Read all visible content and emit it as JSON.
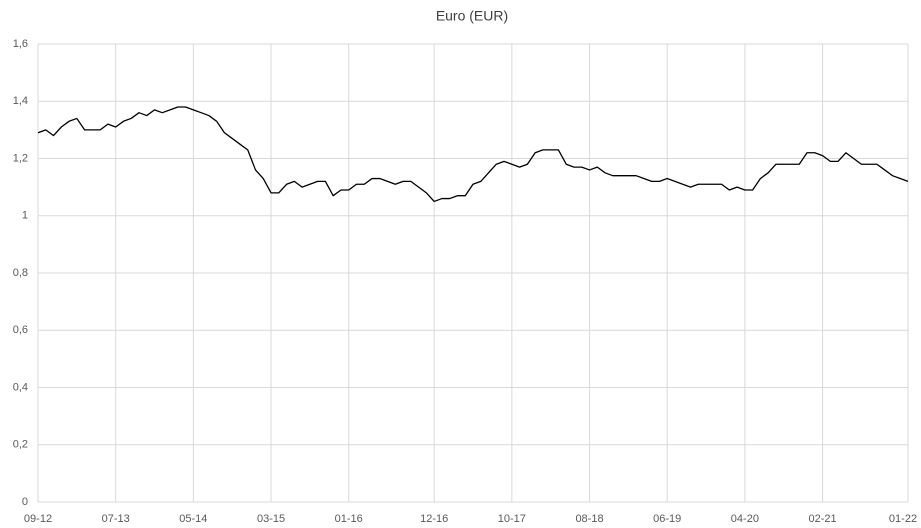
{
  "chart_data": {
    "type": "line",
    "title": "Euro (EUR)",
    "categories": [
      "09-12",
      null,
      null,
      null,
      null,
      null,
      null,
      null,
      null,
      null,
      "07-13",
      null,
      null,
      null,
      null,
      null,
      null,
      null,
      null,
      null,
      "05-14",
      null,
      null,
      null,
      null,
      null,
      null,
      null,
      null,
      null,
      "03-15",
      null,
      null,
      null,
      null,
      null,
      null,
      null,
      null,
      null,
      "01-16",
      null,
      null,
      null,
      null,
      null,
      null,
      null,
      null,
      null,
      null,
      "12-16",
      null,
      null,
      null,
      null,
      null,
      null,
      null,
      null,
      null,
      "10-17",
      null,
      null,
      null,
      null,
      null,
      null,
      null,
      null,
      null,
      "08-18",
      null,
      null,
      null,
      null,
      null,
      null,
      null,
      null,
      null,
      "06-19",
      null,
      null,
      null,
      null,
      null,
      null,
      null,
      null,
      null,
      "04-20",
      null,
      null,
      null,
      null,
      null,
      null,
      null,
      null,
      null,
      "02-21",
      null,
      null,
      null,
      null,
      null,
      null,
      null,
      null,
      null,
      null,
      "01-22"
    ],
    "values": [
      1.29,
      1.3,
      1.28,
      1.31,
      1.33,
      1.34,
      1.3,
      1.3,
      1.3,
      1.32,
      1.31,
      1.33,
      1.34,
      1.36,
      1.35,
      1.37,
      1.36,
      1.37,
      1.38,
      1.38,
      1.37,
      1.36,
      1.35,
      1.33,
      1.29,
      1.27,
      1.25,
      1.23,
      1.16,
      1.13,
      1.08,
      1.08,
      1.11,
      1.12,
      1.1,
      1.11,
      1.12,
      1.12,
      1.07,
      1.09,
      1.09,
      1.11,
      1.11,
      1.13,
      1.13,
      1.12,
      1.11,
      1.12,
      1.12,
      1.1,
      1.08,
      1.05,
      1.06,
      1.06,
      1.07,
      1.07,
      1.11,
      1.12,
      1.15,
      1.18,
      1.19,
      1.18,
      1.17,
      1.18,
      1.22,
      1.23,
      1.23,
      1.23,
      1.18,
      1.17,
      1.17,
      1.16,
      1.17,
      1.15,
      1.14,
      1.14,
      1.14,
      1.14,
      1.13,
      1.12,
      1.12,
      1.13,
      1.12,
      1.11,
      1.1,
      1.11,
      1.11,
      1.11,
      1.11,
      1.09,
      1.1,
      1.09,
      1.09,
      1.13,
      1.15,
      1.18,
      1.18,
      1.18,
      1.18,
      1.22,
      1.22,
      1.21,
      1.19,
      1.19,
      1.22,
      1.2,
      1.18,
      1.18,
      1.18,
      1.16,
      1.14,
      1.13,
      1.12
    ],
    "color": "#000000",
    "ylim": [
      0,
      1.6
    ],
    "yticks": [
      0,
      {
        "value": 0.2,
        "label": "0,2"
      },
      {
        "value": 0.4,
        "label": "0,4"
      },
      {
        "value": 0.6,
        "label": "0,6"
      },
      {
        "value": 0.8,
        "label": "0,8"
      },
      1,
      {
        "value": 1.2,
        "label": "1,2"
      },
      {
        "value": 1.4,
        "label": "1,4"
      },
      {
        "value": 1.6,
        "label": "1,6"
      }
    ],
    "grid": true
  }
}
